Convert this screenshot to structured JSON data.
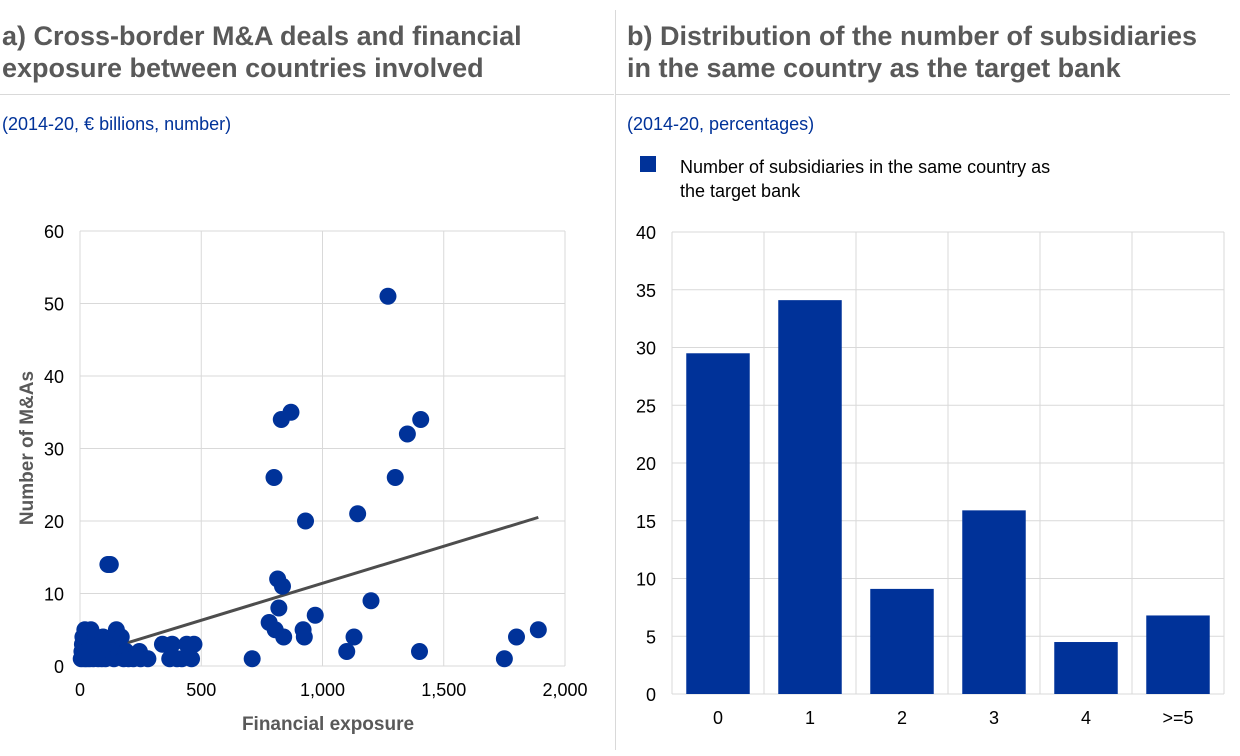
{
  "panel_a": {
    "title_line1": "a) Cross-border M&A deals and financial",
    "title_line2": "exposure between countries involved",
    "subtitle": "(2014-20, € billions, number)"
  },
  "panel_b": {
    "title_line1": "b) Distribution of the number of subsidiaries",
    "title_line2": "in the same country as the target bank",
    "subtitle": "(2014-20, percentages)",
    "legend_line1": "Number of subsidiaries in the same country as",
    "legend_line2": "the target bank"
  },
  "colors": {
    "series": "#003299",
    "trend": "#4d4d4d",
    "grid": "#d9d9d9",
    "axis_text": "#000000",
    "axis_title": "#595959"
  },
  "chart_data": [
    {
      "type": "scatter",
      "xlabel": "Financial exposure",
      "ylabel": "Number of M&As",
      "xlim": [
        0,
        2000
      ],
      "ylim": [
        0,
        60
      ],
      "xticks": [
        0,
        500,
        1000,
        1500,
        2000
      ],
      "xtick_labels": [
        "0",
        "500",
        "1,000",
        "1,500",
        "2,000"
      ],
      "yticks": [
        0,
        10,
        20,
        30,
        40,
        50,
        60
      ],
      "grid": true,
      "points": [
        [
          5,
          1
        ],
        [
          8,
          2
        ],
        [
          10,
          3
        ],
        [
          12,
          4
        ],
        [
          15,
          2
        ],
        [
          18,
          1
        ],
        [
          20,
          5
        ],
        [
          22,
          3
        ],
        [
          25,
          2
        ],
        [
          28,
          1
        ],
        [
          30,
          4
        ],
        [
          35,
          2
        ],
        [
          40,
          1
        ],
        [
          42,
          3
        ],
        [
          45,
          5
        ],
        [
          50,
          2
        ],
        [
          55,
          1
        ],
        [
          60,
          3
        ],
        [
          65,
          4
        ],
        [
          70,
          2
        ],
        [
          75,
          1
        ],
        [
          80,
          3
        ],
        [
          85,
          2
        ],
        [
          90,
          1
        ],
        [
          95,
          4
        ],
        [
          100,
          2
        ],
        [
          105,
          1
        ],
        [
          110,
          3
        ],
        [
          115,
          14
        ],
        [
          125,
          14
        ],
        [
          130,
          2
        ],
        [
          140,
          1
        ],
        [
          145,
          4
        ],
        [
          150,
          5
        ],
        [
          160,
          2
        ],
        [
          170,
          4
        ],
        [
          180,
          1
        ],
        [
          190,
          2
        ],
        [
          200,
          1
        ],
        [
          220,
          1
        ],
        [
          245,
          2
        ],
        [
          250,
          1
        ],
        [
          280,
          1
        ],
        [
          340,
          3
        ],
        [
          370,
          1
        ],
        [
          380,
          3
        ],
        [
          400,
          1
        ],
        [
          420,
          1
        ],
        [
          440,
          3
        ],
        [
          460,
          1
        ],
        [
          470,
          3
        ],
        [
          710,
          1
        ],
        [
          780,
          6
        ],
        [
          800,
          26
        ],
        [
          805,
          5
        ],
        [
          815,
          12
        ],
        [
          820,
          8
        ],
        [
          830,
          34
        ],
        [
          835,
          11
        ],
        [
          840,
          4
        ],
        [
          870,
          35
        ],
        [
          920,
          5
        ],
        [
          925,
          4
        ],
        [
          930,
          20
        ],
        [
          970,
          7
        ],
        [
          1100,
          2
        ],
        [
          1130,
          4
        ],
        [
          1145,
          21
        ],
        [
          1200,
          9
        ],
        [
          1270,
          51
        ],
        [
          1300,
          26
        ],
        [
          1350,
          32
        ],
        [
          1400,
          2
        ],
        [
          1405,
          34
        ],
        [
          1750,
          1
        ],
        [
          1800,
          4
        ],
        [
          1890,
          5
        ]
      ],
      "trendline": [
        [
          0,
          1.2
        ],
        [
          1890,
          20.5
        ]
      ]
    },
    {
      "type": "bar",
      "categories": [
        "0",
        "1",
        "2",
        "3",
        "4",
        ">=5"
      ],
      "series": [
        {
          "name": "Number of subsidiaries in the same country as the target bank",
          "values": [
            29.5,
            34.1,
            9.1,
            15.9,
            4.5,
            6.8
          ]
        }
      ],
      "ylim": [
        0,
        40
      ],
      "yticks": [
        0,
        5,
        10,
        15,
        20,
        25,
        30,
        35,
        40
      ],
      "grid": true,
      "legend": "top-left"
    }
  ]
}
